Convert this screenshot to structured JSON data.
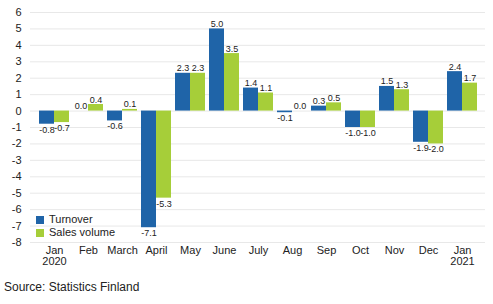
{
  "chart_data": {
    "type": "bar",
    "caption": "Source: Statistics Finland",
    "categories": [
      "Jan\n2020",
      "Feb",
      "March",
      "April",
      "May",
      "June",
      "July",
      "Aug",
      "Sep",
      "Oct",
      "Nov",
      "Dec",
      "Jan\n2021"
    ],
    "series": [
      {
        "name": "Turnover",
        "color": "#1f64a8",
        "values": [
          -0.8,
          0.0,
          -0.6,
          -7.1,
          2.3,
          5.0,
          1.4,
          -0.1,
          0.3,
          -1.0,
          1.5,
          -1.9,
          2.4
        ],
        "value_labels": [
          "-0.8",
          "0.0",
          "-0.6",
          "-7.1",
          "2.3",
          "5.0",
          "1.4",
          "-0.1",
          "0.3",
          "-1.0",
          "1.5",
          "-1.9",
          "2.4"
        ]
      },
      {
        "name": "Sales volume",
        "color": "#a6ce39",
        "values": [
          -0.7,
          0.4,
          0.1,
          -5.3,
          2.3,
          3.5,
          1.1,
          0.0,
          0.5,
          -1.0,
          1.3,
          -2.0,
          1.7
        ],
        "value_labels": [
          "-0.7",
          "0.4",
          "0.1",
          "-5.3",
          "2.3",
          "3.5",
          "1.1",
          "0.0",
          "0.5",
          "-1.0",
          "1.3",
          "-2.0",
          "1.7"
        ]
      }
    ],
    "ylim": [
      -8,
      6
    ],
    "yticks": [
      -8,
      -7,
      -6,
      -5,
      -4,
      -3,
      -2,
      -1,
      0,
      1,
      2,
      3,
      4,
      5,
      6
    ],
    "grid": true,
    "legend": "bottom-left",
    "data_labels": true
  }
}
